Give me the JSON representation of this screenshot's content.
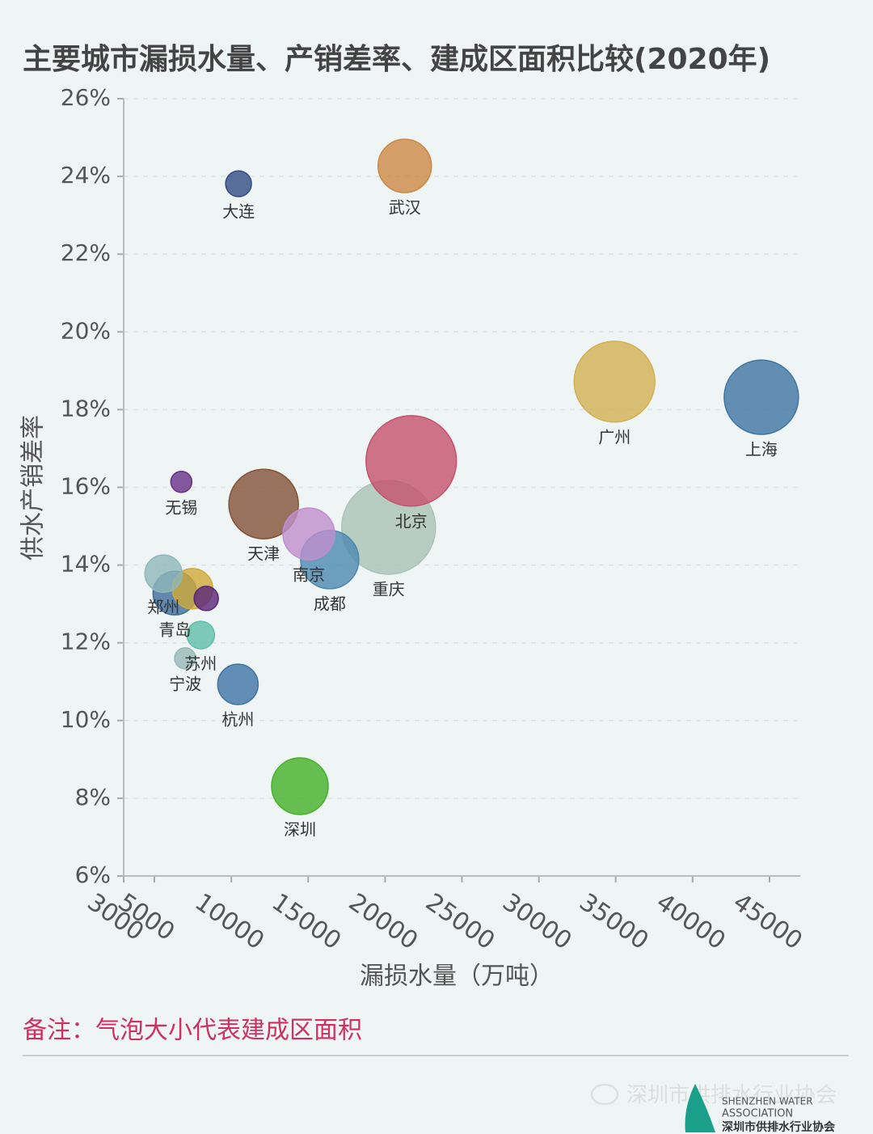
{
  "chart_data": {
    "type": "bubble",
    "title": "主要城市漏损水量、产销差率、建成区面积比较(2020年)",
    "x_label": "漏损水量（万吨）",
    "y_label": "供水产销差率",
    "names": [
      "大连",
      "武汉",
      "广州",
      "上海",
      "北京",
      "重庆",
      "天津",
      "无锡",
      "南京",
      "成都",
      "郑州",
      "青岛",
      "苏州",
      "宁波",
      "杭州",
      "深圳",
      null,
      null
    ],
    "x": [
      10470,
      21280,
      34920,
      44470,
      21700,
      20230,
      12100,
      6750,
      15040,
      16400,
      5590,
      6330,
      8010,
      7000,
      10430,
      14460,
      7480,
      8370
    ],
    "values": [
      23.81,
      24.27,
      18.72,
      18.32,
      16.68,
      14.97,
      15.57,
      16.14,
      14.8,
      14.14,
      13.78,
      13.28,
      12.2,
      11.6,
      10.93,
      8.31,
      13.39,
      13.14
    ],
    "sizes": [
      102,
      436,
      1000,
      846,
      1254,
      1346,
      740,
      68,
      410,
      518,
      212,
      292,
      116,
      68,
      250,
      490,
      250,
      90
    ],
    "colors": [
      "#3a5a9c",
      "#f0a050",
      "#f7d060",
      "#4a8ac0",
      "#e8607f",
      "#c8e6d6",
      "#9a6040",
      "#7a3aa0",
      "#e0a8f0",
      "#5aa0d0",
      "#a8d8d8",
      "#4a80b8",
      "#70e0c8",
      "#b0d8d8",
      "#4a88c0",
      "#50d030",
      "#f5c842",
      "#6a2a90"
    ],
    "xlim": [
      3000,
      47000
    ],
    "xticks": [
      3000,
      5000,
      10000,
      15000,
      20000,
      25000,
      30000,
      35000,
      40000,
      45000
    ],
    "ylim": [
      6,
      26
    ],
    "yticks": [
      {
        "value": 6,
        "label": "6%"
      },
      {
        "value": 8,
        "label": "8%"
      },
      {
        "value": 10,
        "label": "10%"
      },
      {
        "value": 12,
        "label": "12%"
      },
      {
        "value": 14,
        "label": "14%"
      },
      {
        "value": 16,
        "label": "16%"
      },
      {
        "value": 18,
        "label": "18%"
      },
      {
        "value": 20,
        "label": "20%"
      },
      {
        "value": 22,
        "label": "22%"
      },
      {
        "value": 24,
        "label": "24%"
      },
      {
        "value": 26,
        "label": "26%"
      }
    ],
    "grid": true
  },
  "note": "备注：气泡大小代表建成区面积",
  "footer": {
    "watermark": "深圳市供排水行业协会",
    "logo_en_1": "SHENZHEN WATER",
    "logo_en_2": "ASSOCIATION",
    "logo_cn": "深圳市供排水行业协会"
  }
}
